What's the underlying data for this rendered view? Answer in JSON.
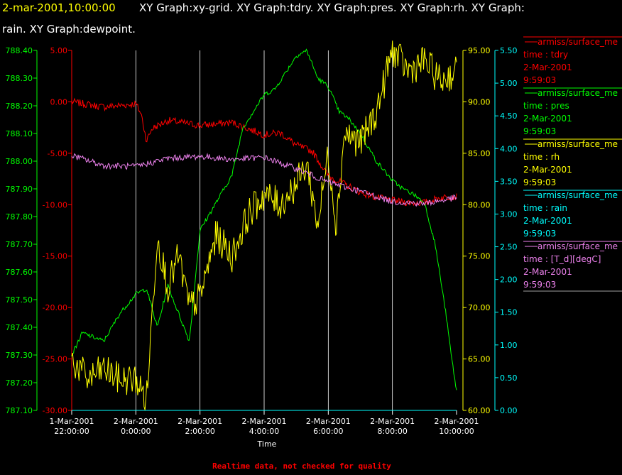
{
  "header": {
    "timestamp": "2-mar-2001,10:00:00",
    "titles_line1": "XY Graph:xy-grid.  XY Graph:tdry.  XY Graph:pres.  XY Graph:rh.  XY Graph:",
    "titles_line2": "rain.  XY Graph:dewpoint."
  },
  "footer": {
    "notice": "Realtime data, not checked for quality"
  },
  "colors": {
    "background": "#000000",
    "timestamp": "#ffff00",
    "grid": "#ffffff",
    "tdry": "#ff0000",
    "pres": "#00ff00",
    "rh": "#ffff00",
    "rain": "#00ffff",
    "dewpoint": "#ee82ee",
    "footer": "#ff0000"
  },
  "chart_data": {
    "type": "line",
    "grid": true,
    "legend_position": "right",
    "xlabel": "Time",
    "x_ticks": [
      {
        "line1": "1-Mar-2001",
        "line2": "22:00:00"
      },
      {
        "line1": "2-Mar-2001",
        "line2": "0:00:00"
      },
      {
        "line1": "2-Mar-2001",
        "line2": "2:00:00"
      },
      {
        "line1": "2-Mar-2001",
        "line2": "4:00:00"
      },
      {
        "line1": "2-Mar-2001",
        "line2": "6:00:00"
      },
      {
        "line1": "2-Mar-2001",
        "line2": "8:00:00"
      },
      {
        "line1": "2-Mar-2001",
        "line2": "10:00:00"
      }
    ],
    "x_range": [
      "1-Mar-2001 22:00:00",
      "2-Mar-2001 10:00:00"
    ],
    "axes": {
      "tdry": {
        "side": "left-inner",
        "color": "tdry",
        "range": [
          -30,
          5
        ],
        "ticks": [
          "5.00",
          "0.00",
          "-5.00",
          "-10.00",
          "-15.00",
          "-20.00",
          "-25.00",
          "-30.00"
        ]
      },
      "pres": {
        "side": "left-outer",
        "color": "pres",
        "range": [
          787.1,
          788.4
        ],
        "ticks": [
          "788.40",
          "788.30",
          "788.20",
          "788.10",
          "788.00",
          "787.90",
          "787.80",
          "787.70",
          "787.60",
          "787.50",
          "787.40",
          "787.30",
          "787.20",
          "787.10"
        ]
      },
      "rh": {
        "side": "right-inner",
        "color": "rh",
        "range": [
          60,
          95
        ],
        "ticks": [
          "95.00",
          "90.00",
          "85.00",
          "80.00",
          "75.00",
          "70.00",
          "65.00",
          "60.00"
        ]
      },
      "rain": {
        "side": "right-outer",
        "color": "rain",
        "range": [
          0,
          5.5
        ],
        "ticks": [
          "5.50",
          "5.00",
          "4.50",
          "4.00",
          "3.50",
          "3.00",
          "2.50",
          "2.00",
          "1.50",
          "1.00",
          "0.50",
          "0.00"
        ]
      }
    },
    "series": [
      {
        "key": "tdry",
        "axis": "tdry",
        "color": "tdry",
        "noise": 0.35,
        "x": [
          "1-Mar-2001 22:00:00",
          "1-Mar-2001 23:00:00",
          "2-Mar-2001 00:00:00",
          "2-Mar-2001 00:10:00",
          "2-Mar-2001 00:20:00",
          "2-Mar-2001 00:30:00",
          "2-Mar-2001 01:00:00",
          "2-Mar-2001 02:00:00",
          "2-Mar-2001 03:00:00",
          "2-Mar-2001 04:00:00",
          "2-Mar-2001 04:30:00",
          "2-Mar-2001 05:00:00",
          "2-Mar-2001 05:30:00",
          "2-Mar-2001 06:00:00",
          "2-Mar-2001 06:30:00",
          "2-Mar-2001 07:00:00",
          "2-Mar-2001 07:30:00",
          "2-Mar-2001 08:00:00",
          "2-Mar-2001 08:30:00",
          "2-Mar-2001 09:00:00",
          "2-Mar-2001 09:30:00",
          "2-Mar-2001 10:00:00"
        ],
        "y": [
          0.0,
          -0.5,
          -0.2,
          -1.2,
          -3.8,
          -2.6,
          -1.8,
          -2.3,
          -2.0,
          -3.2,
          -3.0,
          -4.2,
          -4.8,
          -7.2,
          -8.0,
          -8.8,
          -9.3,
          -9.6,
          -9.8,
          -9.8,
          -9.3,
          -9.2
        ]
      },
      {
        "key": "pres",
        "axis": "pres",
        "color": "pres",
        "noise": 0.008,
        "x": [
          "1-Mar-2001 22:00:00",
          "1-Mar-2001 22:20:00",
          "1-Mar-2001 23:00:00",
          "1-Mar-2001 23:30:00",
          "2-Mar-2001 00:00:00",
          "2-Mar-2001 00:20:00",
          "2-Mar-2001 00:40:00",
          "2-Mar-2001 01:00:00",
          "2-Mar-2001 01:20:00",
          "2-Mar-2001 01:40:00",
          "2-Mar-2001 02:00:00",
          "2-Mar-2001 02:30:00",
          "2-Mar-2001 03:00:00",
          "2-Mar-2001 03:20:00",
          "2-Mar-2001 03:40:00",
          "2-Mar-2001 04:00:00",
          "2-Mar-2001 04:20:00",
          "2-Mar-2001 04:40:00",
          "2-Mar-2001 05:00:00",
          "2-Mar-2001 05:20:00",
          "2-Mar-2001 05:40:00",
          "2-Mar-2001 06:00:00",
          "2-Mar-2001 06:20:00",
          "2-Mar-2001 06:40:00",
          "2-Mar-2001 07:00:00",
          "2-Mar-2001 07:30:00",
          "2-Mar-2001 08:00:00",
          "2-Mar-2001 08:20:00",
          "2-Mar-2001 08:40:00",
          "2-Mar-2001 09:00:00",
          "2-Mar-2001 09:20:00",
          "2-Mar-2001 09:40:00",
          "2-Mar-2001 09:50:00",
          "2-Mar-2001 10:00:00"
        ],
        "y": [
          787.3,
          787.38,
          787.35,
          787.45,
          787.52,
          787.54,
          787.4,
          787.55,
          787.45,
          787.35,
          787.75,
          787.85,
          787.95,
          788.12,
          788.18,
          788.24,
          788.26,
          788.32,
          788.38,
          788.4,
          788.3,
          788.27,
          788.18,
          788.15,
          788.1,
          788.0,
          787.93,
          787.9,
          787.88,
          787.85,
          787.7,
          787.45,
          787.3,
          787.17
        ]
      },
      {
        "key": "rh",
        "axis": "rh",
        "color": "rh",
        "noise": 1.6,
        "x": [
          "1-Mar-2001 22:00:00",
          "1-Mar-2001 22:30:00",
          "1-Mar-2001 23:00:00",
          "1-Mar-2001 23:30:00",
          "2-Mar-2001 00:00:00",
          "2-Mar-2001 00:20:00",
          "2-Mar-2001 00:40:00",
          "2-Mar-2001 01:00:00",
          "2-Mar-2001 01:20:00",
          "2-Mar-2001 01:40:00",
          "2-Mar-2001 02:00:00",
          "2-Mar-2001 02:30:00",
          "2-Mar-2001 03:00:00",
          "2-Mar-2001 03:30:00",
          "2-Mar-2001 04:00:00",
          "2-Mar-2001 04:30:00",
          "2-Mar-2001 05:00:00",
          "2-Mar-2001 05:20:00",
          "2-Mar-2001 05:40:00",
          "2-Mar-2001 06:00:00",
          "2-Mar-2001 06:15:00",
          "2-Mar-2001 06:30:00",
          "2-Mar-2001 07:00:00",
          "2-Mar-2001 07:30:00",
          "2-Mar-2001 08:00:00",
          "2-Mar-2001 08:30:00",
          "2-Mar-2001 09:00:00",
          "2-Mar-2001 09:30:00",
          "2-Mar-2001 10:00:00"
        ],
        "y": [
          65,
          63,
          64,
          63,
          63,
          61,
          77,
          72,
          75,
          70,
          71,
          77,
          75,
          79,
          81,
          80,
          82,
          84,
          78,
          85,
          78,
          87,
          86,
          89,
          95,
          93,
          94,
          92,
          93
        ]
      },
      {
        "key": "rain",
        "axis": "rain",
        "color": "rain",
        "noise": 0,
        "x": [
          "1-Mar-2001 22:00:00",
          "2-Mar-2001 10:00:00"
        ],
        "y": [
          0.0,
          0.0
        ]
      },
      {
        "key": "dewpoint",
        "axis": "tdry",
        "color": "dewpoint",
        "noise": 0.3,
        "x": [
          "1-Mar-2001 22:00:00",
          "1-Mar-2001 23:00:00",
          "2-Mar-2001 00:00:00",
          "2-Mar-2001 01:00:00",
          "2-Mar-2001 02:00:00",
          "2-Mar-2001 03:00:00",
          "2-Mar-2001 04:00:00",
          "2-Mar-2001 05:00:00",
          "2-Mar-2001 06:00:00",
          "2-Mar-2001 07:00:00",
          "2-Mar-2001 08:00:00",
          "2-Mar-2001 09:00:00",
          "2-Mar-2001 10:00:00"
        ],
        "y": [
          -5.2,
          -6.2,
          -6.3,
          -5.5,
          -5.3,
          -5.6,
          -5.4,
          -6.5,
          -7.8,
          -8.7,
          -9.7,
          -9.9,
          -9.3
        ]
      }
    ],
    "legend": [
      {
        "color": "tdry",
        "name": "armiss/surface_me",
        "desc": "time : tdry",
        "date": "2-Mar-2001",
        "time": "9:59:03"
      },
      {
        "color": "pres",
        "name": "armiss/surface_me",
        "desc": "time : pres",
        "date": "2-Mar-2001",
        "time": "9:59:03"
      },
      {
        "color": "rh",
        "name": "armiss/surface_me",
        "desc": "time : rh",
        "date": "2-Mar-2001",
        "time": "9:59:03"
      },
      {
        "color": "rain",
        "name": "armiss/surface_me",
        "desc": "time : rain",
        "date": "2-Mar-2001",
        "time": "9:59:03"
      },
      {
        "color": "dewpoint",
        "name": "armiss/surface_me",
        "desc": "time : [T_d][degC]",
        "date": "2-Mar-2001",
        "time": "9:59:03"
      }
    ]
  }
}
